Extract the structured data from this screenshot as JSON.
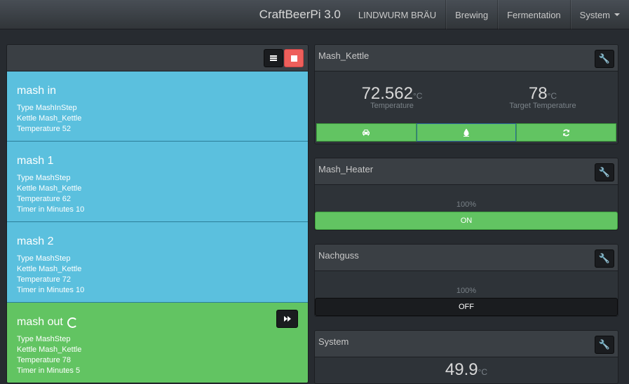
{
  "navbar": {
    "brand": "CraftBeerPi 3.0",
    "items": [
      "LINDWURM BRÄU",
      "Brewing",
      "Fermentation",
      "System"
    ]
  },
  "steps": [
    {
      "name": "mash in",
      "props": [
        "Type MashInStep",
        "Kettle Mash_Kettle",
        "Temperature 52"
      ]
    },
    {
      "name": "mash 1",
      "props": [
        "Type MashStep",
        "Kettle Mash_Kettle",
        "Temperature 62",
        "Timer in Minutes 10"
      ]
    },
    {
      "name": "mash 2",
      "props": [
        "Type MashStep",
        "Kettle Mash_Kettle",
        "Temperature 72",
        "Timer in Minutes 10"
      ]
    },
    {
      "name": "mash out",
      "props": [
        "Type MashStep",
        "Kettle Mash_Kettle",
        "Temperature 78",
        "Timer in Minutes 5"
      ],
      "active": true
    }
  ],
  "kettle": {
    "title": "Mash_Kettle",
    "temperature": "72.562",
    "temperature_unit": "°C",
    "temperature_label": "Temperature",
    "target": "78",
    "target_unit": "°C",
    "target_label": "Target Temperature",
    "buttons": [
      "car-icon",
      "tint-icon",
      "refresh-icon"
    ]
  },
  "heater": {
    "title": "Mash_Heater",
    "power": "100%",
    "state": "ON"
  },
  "nachguss": {
    "title": "Nachguss",
    "power": "100%",
    "state": "OFF"
  },
  "system": {
    "title": "System",
    "value": "49.9",
    "unit": "°C"
  },
  "colors": {
    "step_blue": "#5bc0de",
    "step_green": "#62c462",
    "stop_red": "#ee5f5b",
    "background": "#272b30"
  }
}
